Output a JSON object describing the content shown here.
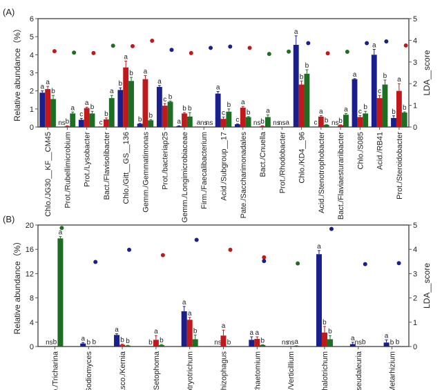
{
  "colors": {
    "g1": "#1a1f8c",
    "g2": "#c0191c",
    "g3": "#1d6e23",
    "axis": "#555555"
  },
  "chart_data": [
    {
      "type": "bar",
      "panel_label": "(A)",
      "ylabel": "Relative abundance（%）",
      "y2label": "LDA__score",
      "ylim": [
        0,
        6
      ],
      "yticks": [
        0,
        1,
        2,
        3,
        4,
        5,
        6
      ],
      "y2lim": [
        0,
        5
      ],
      "y2ticks": [
        0,
        1,
        2,
        3,
        4,
        5
      ],
      "series_colors": [
        "g1",
        "g2",
        "g3"
      ],
      "categories": [
        {
          "label": "Chlo./JG30__KF__CM45",
          "values": [
            1.9,
            2.1,
            1.55
          ],
          "err": [
            0.1,
            0.15,
            0.2
          ],
          "letters": [
            "a",
            "a",
            "b"
          ],
          "lda": [
            {
              "v": 3.5,
              "c": "g2"
            }
          ]
        },
        {
          "label": "Prot./Rubellimicrobium",
          "values": [
            0,
            0.05,
            0.75
          ],
          "err": [
            0,
            0.02,
            0.08
          ],
          "letters": [
            "ns",
            "b",
            "a"
          ],
          "lda": [
            {
              "v": 3.43,
              "c": "g3"
            }
          ]
        },
        {
          "label": "Prot./Lysobacter",
          "values": [
            0.4,
            1.05,
            0.75
          ],
          "err": [
            0.08,
            0.05,
            0.12
          ],
          "letters": [
            "c",
            "a",
            "b"
          ],
          "lda": [
            {
              "v": 3.41,
              "c": "g2"
            }
          ]
        },
        {
          "label": "Bact./Flavisolibacter",
          "values": [
            0.02,
            0.42,
            1.6
          ],
          "err": [
            0,
            0.08,
            0.15
          ],
          "letters": [
            "c",
            "b",
            "a"
          ],
          "lda": [
            {
              "v": 3.75,
              "c": "g3"
            }
          ]
        },
        {
          "label": "Chlo./Gitt__GS__136",
          "values": [
            2.05,
            3.3,
            2.55
          ],
          "err": [
            0.12,
            0.35,
            0.2
          ],
          "letters": [
            "b",
            "a",
            "b"
          ],
          "lda": [
            {
              "v": 3.73,
              "c": "g2"
            }
          ]
        },
        {
          "label": "Gemm./Gemmatimonas",
          "values": [
            0.18,
            2.65,
            0.37
          ],
          "err": [
            0.02,
            0.2,
            0.04
          ],
          "letters": [
            "b",
            "a",
            "b"
          ],
          "lda": [
            {
              "v": 3.98,
              "c": "g2"
            }
          ]
        },
        {
          "label": "Prot./bacteriap25",
          "values": [
            2.22,
            1.18,
            1.4
          ],
          "err": [
            0.08,
            0.12,
            0.04
          ],
          "letters": [
            "a",
            "c",
            "b"
          ],
          "lda": [
            {
              "v": 3.56,
              "c": "g1"
            }
          ]
        },
        {
          "label": "Gemm./Longimicrobiaceae",
          "values": [
            0.05,
            0.75,
            0.58
          ],
          "err": [
            0.02,
            0.05,
            0.22
          ],
          "letters": [
            "a",
            "b",
            "b"
          ],
          "lda": [
            {
              "v": 3.41,
              "c": "g2"
            }
          ]
        },
        {
          "label": "Firm./Faecalibacterium",
          "values": [
            0.01,
            0,
            0
          ],
          "err": [
            0,
            0,
            0
          ],
          "letters": [
            "a",
            "ns",
            "ns"
          ],
          "lda": [
            {
              "v": 3.65,
              "c": "g1"
            }
          ]
        },
        {
          "label": "Acid./Subgroup__17",
          "values": [
            1.85,
            0.45,
            0.85
          ],
          "err": [
            0.12,
            0.1,
            0.15
          ],
          "letters": [
            "a",
            "c",
            "b"
          ],
          "lda": [
            {
              "v": 3.71,
              "c": "g1"
            }
          ]
        },
        {
          "label": "Pate./Saccharimonadales",
          "values": [
            0.15,
            1.07,
            0.55
          ],
          "err": [
            0.02,
            0.07,
            0.03
          ],
          "letters": [
            "c",
            "a",
            "b"
          ],
          "lda": [
            {
              "v": 3.65,
              "c": "g2"
            }
          ]
        },
        {
          "label": "Bact./Cnuella",
          "values": [
            0,
            0.05,
            0.55
          ],
          "err": [
            0,
            0.02,
            0.12
          ],
          "letters": [
            "ns",
            "b",
            "a"
          ],
          "lda": [
            {
              "v": 3.37,
              "c": "g3"
            }
          ]
        },
        {
          "label": "Prot./Rhodobacter",
          "values": [
            0,
            0,
            0.02
          ],
          "err": [
            0,
            0,
            0
          ],
          "letters": [
            "ns",
            "ns",
            "a"
          ],
          "lda": [
            {
              "v": 3.48,
              "c": "g3"
            }
          ]
        },
        {
          "label": "Chlo./KD4__96",
          "values": [
            4.55,
            2.35,
            2.95
          ],
          "err": [
            0.5,
            0.2,
            0.22
          ],
          "letters": [
            "a",
            "b",
            "b"
          ],
          "lda": [
            {
              "v": 3.87,
              "c": "g1"
            }
          ]
        },
        {
          "label": "Acid./Stenotrophobacter",
          "values": [
            0.01,
            0.58,
            0.12
          ],
          "err": [
            0,
            0.05,
            0.02
          ],
          "letters": [
            "c",
            "a",
            "b"
          ],
          "lda": [
            {
              "v": 3.4,
              "c": "g2"
            }
          ]
        },
        {
          "label": "Bact./Flaviaesturariibacter",
          "values": [
            0,
            0.1,
            0.68
          ],
          "err": [
            0,
            0.02,
            0.07
          ],
          "letters": [
            "ns",
            "b",
            "a"
          ],
          "lda": [
            {
              "v": 3.47,
              "c": "g3"
            }
          ]
        },
        {
          "label": "Chlo./S085",
          "values": [
            2.65,
            0.55,
            0.75
          ],
          "err": [
            0.03,
            0.08,
            0.12
          ],
          "letters": [
            "a",
            "c",
            "b"
          ],
          "lda": [
            {
              "v": 3.87,
              "c": "g1"
            }
          ]
        },
        {
          "label": "Acid./RB41",
          "values": [
            4.0,
            1.6,
            2.35
          ],
          "err": [
            0.3,
            0.15,
            0.25
          ],
          "letters": [
            "a",
            "c",
            "b"
          ],
          "lda": [
            {
              "v": 3.95,
              "c": "g1"
            }
          ]
        },
        {
          "label": "Prot./Steroidobacter",
          "values": [
            0.5,
            2.0,
            0.8
          ],
          "err": [
            0.12,
            0.4,
            0.04
          ],
          "letters": [
            "b",
            "a",
            "b"
          ],
          "lda": [
            {
              "v": 3.76,
              "c": "g2"
            }
          ]
        }
      ]
    },
    {
      "type": "bar",
      "panel_label": "(B)",
      "ylabel": "Relative abundance（%）",
      "y2label": "LDA__score",
      "ylim": [
        0,
        20
      ],
      "yticks": [
        0,
        4,
        8,
        12,
        16,
        20
      ],
      "y2lim": [
        0,
        5
      ],
      "y2ticks": [
        0,
        1,
        2,
        3,
        4,
        5
      ],
      "series_colors": [
        "g1",
        "g2",
        "g3"
      ],
      "categories": [
        {
          "label": "o./Tricharina",
          "values": [
            0,
            0.05,
            17.8
          ],
          "err": [
            0,
            0,
            0.3
          ],
          "letters": [
            "ns",
            "b",
            "a"
          ],
          "lda": [
            {
              "v": 4.88,
              "c": "g3"
            }
          ]
        },
        {
          "label": "Sodiomyces",
          "values": [
            0.5,
            0,
            0.05
          ],
          "err": [
            0.15,
            0,
            0
          ],
          "letters": [
            "a",
            "b",
            "b"
          ],
          "lda": [
            {
              "v": 3.48,
              "c": "g1"
            }
          ]
        },
        {
          "label": "Asco./Kernia",
          "values": [
            1.9,
            0.3,
            0.15
          ],
          "err": [
            0.2,
            0.1,
            0.05
          ],
          "letters": [
            "a",
            "b",
            "b"
          ],
          "lda": [
            {
              "v": 3.98,
              "c": "g1"
            }
          ]
        },
        {
          "label": "/Setophoma",
          "values": [
            0,
            1.1,
            0.25
          ],
          "err": [
            0,
            0.7,
            0.1
          ],
          "letters": [
            "b",
            "a",
            "b"
          ],
          "lda": [
            {
              "v": 3.76,
              "c": "g2"
            }
          ]
        },
        {
          "label": "otryotrichum",
          "values": [
            5.8,
            4.4,
            1.2
          ],
          "err": [
            0.8,
            0.4,
            0.7
          ],
          "letters": [
            "a",
            "a",
            "b"
          ],
          "lda": [
            {
              "v": 4.39,
              "c": "g1"
            }
          ]
        },
        {
          "label": "hizophagus",
          "values": [
            0,
            1.8,
            0
          ],
          "err": [
            0,
            0.9,
            0
          ],
          "letters": [
            "ns",
            "a",
            "b"
          ],
          "lda": [
            {
              "v": 3.98,
              "c": "g2"
            }
          ]
        },
        {
          "label": "Chaetomium",
          "values": [
            1.1,
            1.25,
            0.25
          ],
          "err": [
            0.5,
            0.35,
            0.05
          ],
          "letters": [
            "a",
            "a",
            "b"
          ],
          "lda": [
            {
              "v": 3.67,
              "c": "g2"
            },
            {
              "v": 3.52,
              "c": "g1"
            }
          ]
        },
        {
          "label": "/Verticillium",
          "values": [
            0,
            0,
            0.1
          ],
          "err": [
            0,
            0,
            0.02
          ],
          "letters": [
            "ns",
            "ns",
            "a"
          ],
          "lda": [
            {
              "v": 3.42,
              "c": "g3"
            }
          ]
        },
        {
          "label": "phalotrichum",
          "values": [
            15.2,
            2.3,
            1.2
          ],
          "err": [
            0.6,
            1.0,
            0.6
          ],
          "letters": [
            "a",
            "b",
            "b"
          ],
          "lda": [
            {
              "v": 4.84,
              "c": "g1"
            }
          ]
        },
        {
          "label": "seudaleuria",
          "values": [
            0.4,
            0,
            0.05
          ],
          "err": [
            0.3,
            0,
            0
          ],
          "letters": [
            "a",
            "ns",
            "b"
          ],
          "lda": [
            {
              "v": 3.39,
              "c": "g1"
            }
          ]
        },
        {
          "label": "Metarhizium",
          "values": [
            0.65,
            0,
            0.05
          ],
          "err": [
            0.45,
            0,
            0
          ],
          "letters": [
            "a",
            "b",
            "b"
          ],
          "lda": [
            {
              "v": 3.43,
              "c": "g1"
            }
          ]
        }
      ]
    }
  ]
}
